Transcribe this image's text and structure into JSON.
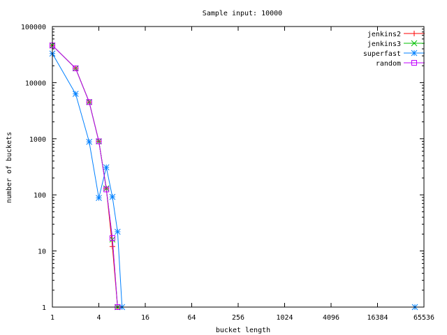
{
  "chart_data": {
    "type": "line",
    "title": "Sample input: 10000",
    "xlabel": "bucket length",
    "ylabel": "number of buckets",
    "x_scale": "log2",
    "y_scale": "log10",
    "xlim": [
      1,
      65536
    ],
    "ylim": [
      1,
      100000
    ],
    "x_ticks": [
      {
        "value": 1,
        "label": "1"
      },
      {
        "value": 4,
        "label": "4"
      },
      {
        "value": 16,
        "label": "16"
      },
      {
        "value": 64,
        "label": "64"
      },
      {
        "value": 256,
        "label": "256"
      },
      {
        "value": 1024,
        "label": "1024"
      },
      {
        "value": 4096,
        "label": "4096"
      },
      {
        "value": 16384,
        "label": "16384"
      },
      {
        "value": 65536,
        "label": "65536"
      }
    ],
    "y_ticks": [
      {
        "value": 1,
        "label": "1"
      },
      {
        "value": 10,
        "label": "10"
      },
      {
        "value": 100,
        "label": "100"
      },
      {
        "value": 1000,
        "label": "1000"
      },
      {
        "value": 10000,
        "label": "10000"
      },
      {
        "value": 100000,
        "label": "100000"
      }
    ],
    "grid": false,
    "legend_position": "top-right",
    "series": [
      {
        "name": "jenkins2",
        "color": "#ff0000",
        "marker": "plus",
        "points": [
          [
            1,
            46000
          ],
          [
            2,
            18000
          ],
          [
            3,
            4500
          ],
          [
            4,
            900
          ],
          [
            5,
            130
          ],
          [
            6,
            12
          ],
          [
            7,
            1
          ]
        ]
      },
      {
        "name": "jenkins3",
        "color": "#00c000",
        "marker": "cross",
        "points": [
          [
            1,
            46000
          ],
          [
            2,
            18000
          ],
          [
            3,
            4500
          ],
          [
            4,
            900
          ],
          [
            5,
            130
          ],
          [
            6,
            16
          ],
          [
            7,
            1
          ]
        ]
      },
      {
        "name": "superfast",
        "color": "#0080ff",
        "marker": "star",
        "points": [
          [
            1,
            33000
          ],
          [
            2,
            6300
          ],
          [
            3,
            880
          ],
          [
            4,
            88
          ],
          [
            5,
            310
          ],
          [
            6,
            92
          ],
          [
            7,
            22
          ],
          [
            8,
            1
          ],
          [
            50000,
            1
          ]
        ],
        "break_before_index": 8
      },
      {
        "name": "random",
        "color": "#c000ff",
        "marker": "square",
        "points": [
          [
            1,
            46000
          ],
          [
            2,
            18000
          ],
          [
            3,
            4500
          ],
          [
            4,
            900
          ],
          [
            5,
            125
          ],
          [
            6,
            17
          ],
          [
            7,
            1
          ]
        ]
      }
    ]
  }
}
